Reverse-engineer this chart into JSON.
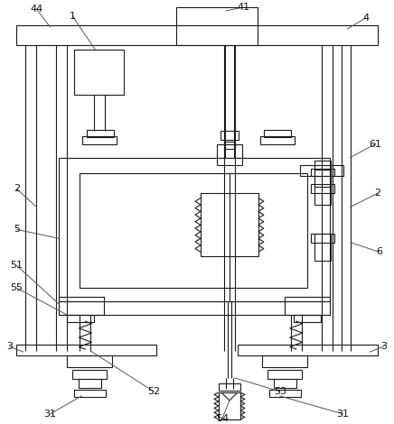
{
  "bg_color": "#ffffff",
  "lc": "#1a1a1a",
  "lw": 0.8
}
